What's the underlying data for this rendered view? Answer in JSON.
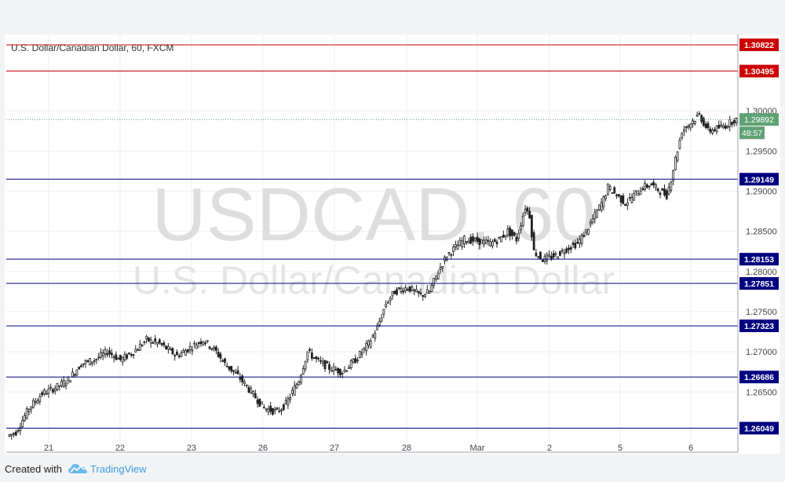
{
  "chart_data": {
    "type": "candlestick",
    "title": "U.S. Dollar/Canadian Dollar, 60, FXCM",
    "watermark_symbol": "USDCAD, 60",
    "watermark_name": "U.S. Dollar/Canadian Dollar",
    "x_ticks": [
      "21",
      "22",
      "23",
      "26",
      "27",
      "28",
      "Mar",
      "2",
      "5",
      "6"
    ],
    "y_ticks": [
      "1.30000",
      "1.29500",
      "1.29000",
      "1.28500",
      "1.28000",
      "1.27500",
      "1.27000",
      "1.26500"
    ],
    "ylim": [
      1.2575,
      1.3095
    ],
    "grid": true,
    "current_price": "1.29892",
    "countdown": "48:57",
    "levels": [
      {
        "label": "1.30822",
        "color": "#cc0000"
      },
      {
        "label": "1.30495",
        "color": "#cc0000"
      },
      {
        "label": "1.29149",
        "color": "#000080"
      },
      {
        "label": "1.28153",
        "color": "#000080"
      },
      {
        "label": "1.27851",
        "color": "#000080"
      },
      {
        "label": "1.27323",
        "color": "#000080"
      },
      {
        "label": "1.26686",
        "color": "#000080"
      },
      {
        "label": "1.26049",
        "color": "#000080"
      }
    ],
    "price_path": [
      [
        0,
        1.2595
      ],
      [
        4,
        1.26
      ],
      [
        10,
        1.263
      ],
      [
        16,
        1.2648
      ],
      [
        22,
        1.2655
      ],
      [
        28,
        1.2665
      ],
      [
        34,
        1.2685
      ],
      [
        40,
        1.269
      ],
      [
        46,
        1.27
      ],
      [
        52,
        1.269
      ],
      [
        58,
        1.27
      ],
      [
        64,
        1.2715
      ],
      [
        70,
        1.271
      ],
      [
        78,
        1.2695
      ],
      [
        84,
        1.2705
      ],
      [
        90,
        1.2715
      ],
      [
        96,
        1.27
      ],
      [
        100,
        1.2685
      ],
      [
        106,
        1.267
      ],
      [
        112,
        1.265
      ],
      [
        118,
        1.263
      ],
      [
        124,
        1.2625
      ],
      [
        128,
        1.2635
      ],
      [
        134,
        1.2665
      ],
      [
        138,
        1.27
      ],
      [
        142,
        1.269
      ],
      [
        148,
        1.268
      ],
      [
        154,
        1.2675
      ],
      [
        160,
        1.269
      ],
      [
        166,
        1.271
      ],
      [
        170,
        1.273
      ],
      [
        174,
        1.276
      ],
      [
        178,
        1.2775
      ],
      [
        184,
        1.278
      ],
      [
        190,
        1.277
      ],
      [
        194,
        1.2775
      ],
      [
        198,
        1.28
      ],
      [
        202,
        1.282
      ],
      [
        206,
        1.283
      ],
      [
        210,
        1.284
      ],
      [
        216,
        1.2838
      ],
      [
        222,
        1.2835
      ],
      [
        226,
        1.284
      ],
      [
        230,
        1.285
      ],
      [
        234,
        1.284
      ],
      [
        238,
        1.288
      ],
      [
        240,
        1.287
      ],
      [
        242,
        1.2825
      ],
      [
        246,
        1.2815
      ],
      [
        252,
        1.282
      ],
      [
        258,
        1.283
      ],
      [
        262,
        1.2835
      ],
      [
        266,
        1.285
      ],
      [
        270,
        1.287
      ],
      [
        274,
        1.289
      ],
      [
        276,
        1.2905
      ],
      [
        280,
        1.2895
      ],
      [
        284,
        1.2885
      ],
      [
        288,
        1.2895
      ],
      [
        292,
        1.2905
      ],
      [
        296,
        1.2908
      ],
      [
        300,
        1.29
      ],
      [
        303,
        1.2895
      ],
      [
        305,
        1.2915
      ],
      [
        307,
        1.294
      ],
      [
        310,
        1.2975
      ],
      [
        314,
        1.2985
      ],
      [
        318,
        1.2995
      ],
      [
        322,
        1.2975
      ],
      [
        326,
        1.2978
      ],
      [
        330,
        1.2982
      ],
      [
        334,
        1.2989
      ]
    ]
  },
  "footer": {
    "created_with": "Created with",
    "brand": "TradingView"
  },
  "icons": {
    "brand_logo": "tradingview-cloud-icon"
  }
}
